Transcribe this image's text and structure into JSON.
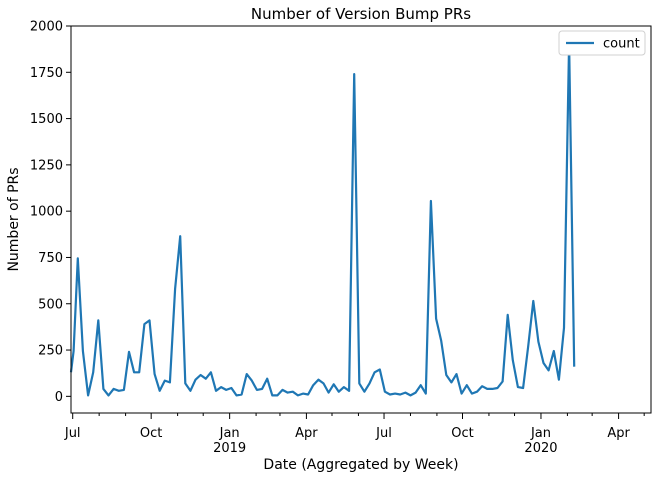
{
  "chart_data": {
    "type": "line",
    "title": "Number of Version Bump PRs",
    "xlabel": "Date (Aggregated by Week)",
    "ylabel": "Number of PRs",
    "x_range": [
      "2018-06-29",
      "2020-05-09"
    ],
    "ylim": [
      -90,
      2000
    ],
    "y_ticks": [
      0,
      250,
      500,
      750,
      1000,
      1250,
      1500,
      1750,
      2000
    ],
    "x_ticks": [
      {
        "date": "2018-07-01",
        "label": "Jul",
        "sublabel": ""
      },
      {
        "date": "2018-10-01",
        "label": "Oct",
        "sublabel": ""
      },
      {
        "date": "2019-01-01",
        "label": "Jan",
        "sublabel": "2019"
      },
      {
        "date": "2019-04-01",
        "label": "Apr",
        "sublabel": ""
      },
      {
        "date": "2019-07-01",
        "label": "Jul",
        "sublabel": ""
      },
      {
        "date": "2019-10-01",
        "label": "Oct",
        "sublabel": ""
      },
      {
        "date": "2020-01-01",
        "label": "Jan",
        "sublabel": "2020"
      },
      {
        "date": "2020-04-01",
        "label": "Apr",
        "sublabel": ""
      }
    ],
    "legend": {
      "position": "upper right",
      "entries": [
        "count"
      ]
    },
    "grid": false,
    "line_color": "#1f77b4",
    "series": [
      {
        "name": "count",
        "points": [
          [
            "2018-06-29",
            130
          ],
          [
            "2018-07-02",
            245
          ],
          [
            "2018-07-07",
            745
          ],
          [
            "2018-07-13",
            245
          ],
          [
            "2018-07-19",
            5
          ],
          [
            "2018-07-25",
            130
          ],
          [
            "2018-07-31",
            410
          ],
          [
            "2018-08-06",
            40
          ],
          [
            "2018-08-12",
            5
          ],
          [
            "2018-08-18",
            40
          ],
          [
            "2018-08-24",
            30
          ],
          [
            "2018-08-30",
            35
          ],
          [
            "2018-09-05",
            240
          ],
          [
            "2018-09-11",
            130
          ],
          [
            "2018-09-17",
            130
          ],
          [
            "2018-09-23",
            390
          ],
          [
            "2018-09-29",
            410
          ],
          [
            "2018-10-05",
            120
          ],
          [
            "2018-10-11",
            30
          ],
          [
            "2018-10-17",
            85
          ],
          [
            "2018-10-23",
            75
          ],
          [
            "2018-10-29",
            580
          ],
          [
            "2018-11-04",
            865
          ],
          [
            "2018-11-10",
            70
          ],
          [
            "2018-11-16",
            30
          ],
          [
            "2018-11-22",
            90
          ],
          [
            "2018-11-28",
            115
          ],
          [
            "2018-12-04",
            95
          ],
          [
            "2018-12-10",
            130
          ],
          [
            "2018-12-16",
            30
          ],
          [
            "2018-12-22",
            50
          ],
          [
            "2018-12-28",
            35
          ],
          [
            "2019-01-03",
            45
          ],
          [
            "2019-01-09",
            5
          ],
          [
            "2019-01-15",
            10
          ],
          [
            "2019-01-21",
            120
          ],
          [
            "2019-01-27",
            85
          ],
          [
            "2019-02-02",
            35
          ],
          [
            "2019-02-08",
            40
          ],
          [
            "2019-02-14",
            95
          ],
          [
            "2019-02-20",
            5
          ],
          [
            "2019-02-26",
            5
          ],
          [
            "2019-03-04",
            35
          ],
          [
            "2019-03-10",
            20
          ],
          [
            "2019-03-16",
            25
          ],
          [
            "2019-03-22",
            5
          ],
          [
            "2019-03-28",
            15
          ],
          [
            "2019-04-03",
            10
          ],
          [
            "2019-04-09",
            60
          ],
          [
            "2019-04-15",
            90
          ],
          [
            "2019-04-21",
            70
          ],
          [
            "2019-04-27",
            20
          ],
          [
            "2019-05-03",
            65
          ],
          [
            "2019-05-09",
            25
          ],
          [
            "2019-05-15",
            50
          ],
          [
            "2019-05-21",
            30
          ],
          [
            "2019-05-27",
            1740
          ],
          [
            "2019-06-02",
            70
          ],
          [
            "2019-06-08",
            25
          ],
          [
            "2019-06-14",
            70
          ],
          [
            "2019-06-20",
            130
          ],
          [
            "2019-06-26",
            145
          ],
          [
            "2019-07-02",
            25
          ],
          [
            "2019-07-08",
            10
          ],
          [
            "2019-07-14",
            15
          ],
          [
            "2019-07-20",
            10
          ],
          [
            "2019-07-26",
            20
          ],
          [
            "2019-08-01",
            5
          ],
          [
            "2019-08-07",
            20
          ],
          [
            "2019-08-13",
            60
          ],
          [
            "2019-08-19",
            15
          ],
          [
            "2019-08-25",
            1055
          ],
          [
            "2019-08-31",
            420
          ],
          [
            "2019-09-06",
            300
          ],
          [
            "2019-09-12",
            115
          ],
          [
            "2019-09-18",
            75
          ],
          [
            "2019-09-24",
            120
          ],
          [
            "2019-09-30",
            15
          ],
          [
            "2019-10-06",
            60
          ],
          [
            "2019-10-12",
            15
          ],
          [
            "2019-10-18",
            25
          ],
          [
            "2019-10-24",
            55
          ],
          [
            "2019-10-30",
            40
          ],
          [
            "2019-11-05",
            40
          ],
          [
            "2019-11-11",
            45
          ],
          [
            "2019-11-17",
            80
          ],
          [
            "2019-11-23",
            440
          ],
          [
            "2019-11-29",
            195
          ],
          [
            "2019-12-05",
            50
          ],
          [
            "2019-12-11",
            45
          ],
          [
            "2019-12-17",
            270
          ],
          [
            "2019-12-23",
            515
          ],
          [
            "2019-12-29",
            295
          ],
          [
            "2020-01-04",
            180
          ],
          [
            "2020-01-10",
            140
          ],
          [
            "2020-01-16",
            245
          ],
          [
            "2020-01-22",
            90
          ],
          [
            "2020-01-28",
            370
          ],
          [
            "2020-02-03",
            1910
          ],
          [
            "2020-02-09",
            160
          ]
        ]
      }
    ]
  }
}
